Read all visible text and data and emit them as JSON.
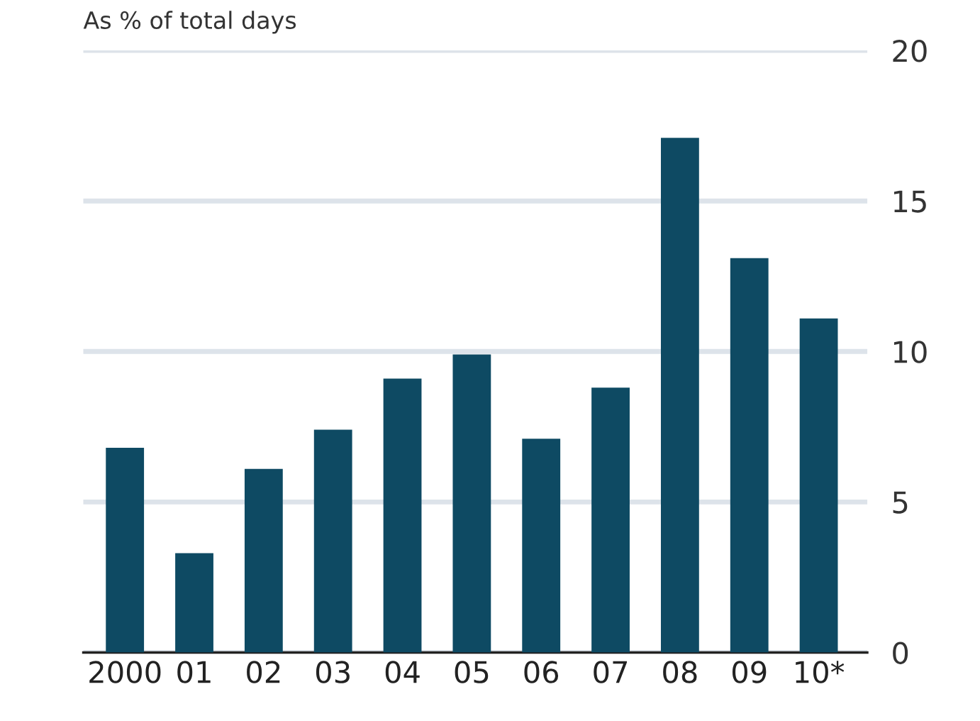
{
  "chart_data": {
    "type": "bar",
    "ylabel": "As % of total days",
    "categories": [
      "2000",
      "01",
      "02",
      "03",
      "04",
      "05",
      "06",
      "07",
      "08",
      "09",
      "10*"
    ],
    "values": [
      6.8,
      3.3,
      6.1,
      7.4,
      9.1,
      9.9,
      7.1,
      8.8,
      17.1,
      13.1,
      11.1
    ],
    "color": "#0e4a63",
    "ylim": [
      0,
      20
    ],
    "yticks": [
      0,
      5,
      10,
      15,
      20
    ],
    "grid": "y"
  }
}
